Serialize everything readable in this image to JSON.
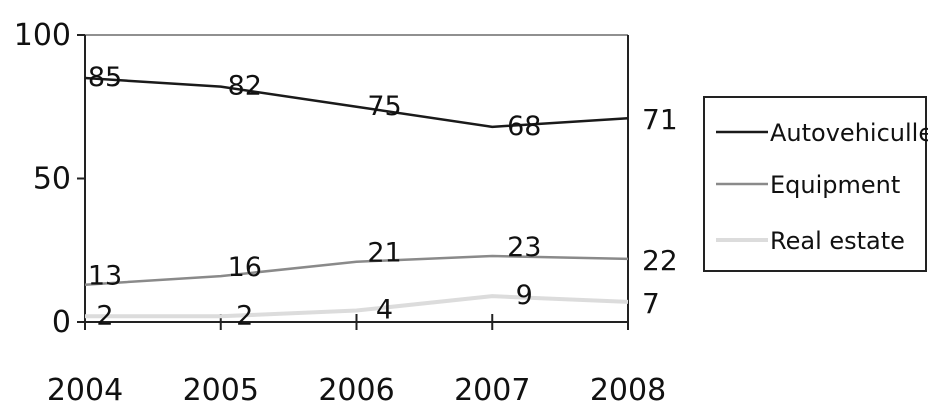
{
  "chart_data": {
    "type": "line",
    "x": [
      "2004",
      "2005",
      "2006",
      "2007",
      "2008"
    ],
    "ylim": [
      0,
      100
    ],
    "yticks": [
      "0",
      "50",
      "100"
    ],
    "grid": false,
    "legend_position": "right",
    "series": [
      {
        "name": "Autovehiculle",
        "color": "#1a1a1a",
        "values": [
          85,
          82,
          75,
          68,
          71
        ]
      },
      {
        "name": "Equipment",
        "color": "#8a8a8a",
        "values": [
          13,
          16,
          21,
          23,
          22
        ]
      },
      {
        "name": "Real estate",
        "color": "#dcdcdc",
        "values": [
          2,
          2,
          4,
          9,
          7
        ]
      }
    ],
    "point_labels": [
      [
        "85",
        "82",
        "75",
        "68",
        "71"
      ],
      [
        "13",
        "16",
        "21",
        "23",
        "22"
      ],
      [
        "2",
        "2",
        "4",
        "9",
        "7"
      ]
    ]
  }
}
